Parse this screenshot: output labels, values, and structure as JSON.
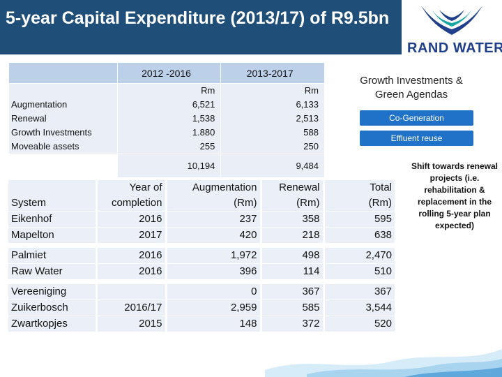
{
  "title": "5-year Capital Expenditure (2013/17) of R9.5bn",
  "logo": {
    "text": "RAND WATER",
    "colors": {
      "blue": "#1f3f8a",
      "teal": "#1aa6a0"
    }
  },
  "summary": {
    "col1_header": "2012 -2016",
    "col2_header": "2013-2017",
    "unit_col1": "Rm",
    "unit_col2": "Rm",
    "rows": [
      {
        "label": "Augmentation",
        "v1": "6,521",
        "v2": "6,133"
      },
      {
        "label": "Renewal",
        "v1": "1,538",
        "v2": "2,513"
      },
      {
        "label": "Growth Investments",
        "v1": "1.880",
        "v2": "588"
      },
      {
        "label": "Moveable assets",
        "v1": "255",
        "v2": "250"
      }
    ],
    "total_col1": "10,194",
    "total_col2": "9,484"
  },
  "projects": {
    "headers": {
      "system": "System",
      "year_line1": "Year of",
      "year_line2": "completion",
      "aug_line1": "Augmentation",
      "aug_line2": "(Rm)",
      "ren_line1": "Renewal",
      "ren_line2": "(Rm)",
      "tot_line1": "Total",
      "tot_line2": "(Rm)"
    },
    "rows": [
      {
        "system": "Eikenhof",
        "year": "2016",
        "aug": "237",
        "ren": "358",
        "total": "595"
      },
      {
        "system": "Mapelton",
        "year": "2017",
        "aug": "420",
        "ren": "218",
        "total": "638"
      },
      {
        "system": "Palmiet",
        "year": "2016",
        "aug": "1,972",
        "ren": "498",
        "total": "2,470"
      },
      {
        "system": "Raw Water",
        "year": "2016",
        "aug": "396",
        "ren": "114",
        "total": "510"
      },
      {
        "system": "Vereeniging",
        "year": "",
        "aug": "0",
        "ren": "367",
        "total": "367"
      },
      {
        "system": "Zuikerbosch",
        "year": "2016/17",
        "aug": "2,959",
        "ren": "585",
        "total": "3,544"
      },
      {
        "system": "Zwartkopjes",
        "year": "2015",
        "aug": "148",
        "ren": "372",
        "total": "520"
      }
    ]
  },
  "sidebar": {
    "growth_title": "Growth Investments & Green Agendas",
    "pill1": "Co-Generation",
    "pill2": "Effluent reuse",
    "shift_note": "Shift towards renewal projects (i.e. rehabilitation & replacement in the rolling 5-year plan expected)"
  },
  "colors": {
    "title_bg": "#1f4e79",
    "pill_bg": "#1f72c8",
    "header_bg": "#bcd0ea",
    "cell_bg": "#e9eef7"
  }
}
